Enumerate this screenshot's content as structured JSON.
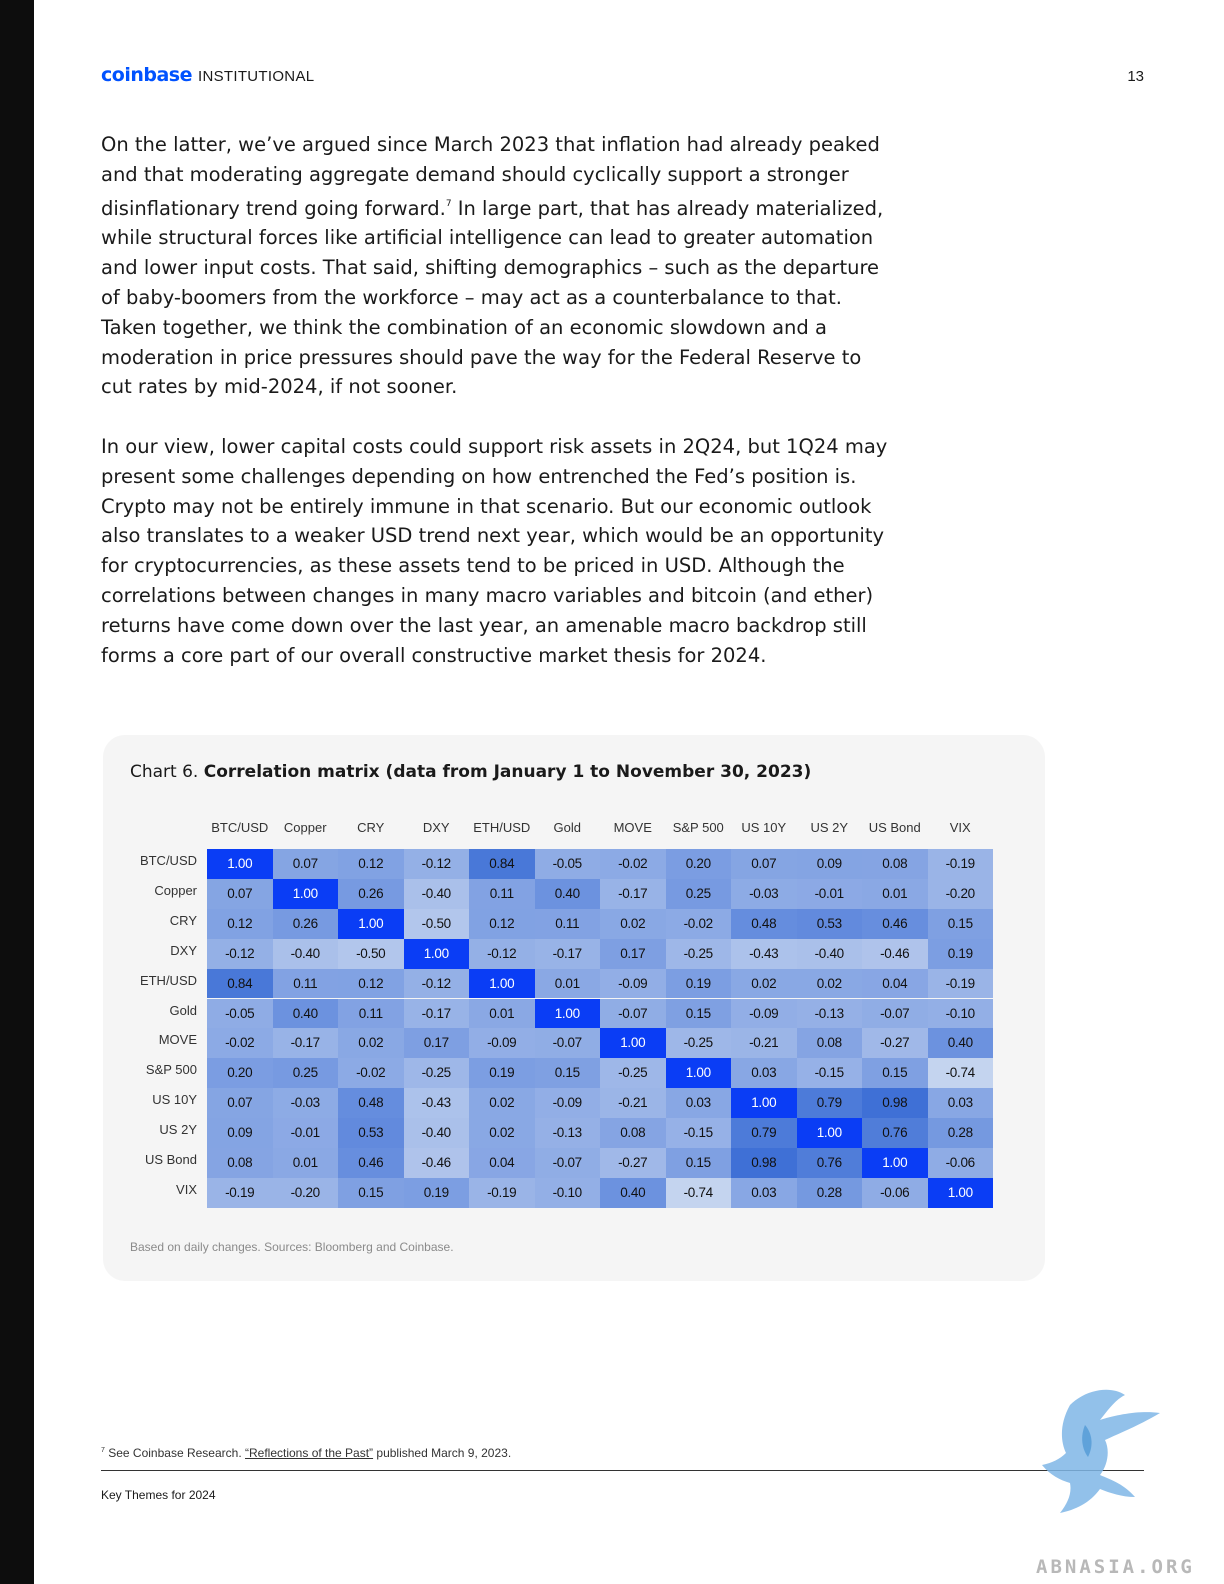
{
  "header": {
    "brand": "coinbase",
    "brand_sub": "INSTITUTIONAL",
    "page_number": "13"
  },
  "body": {
    "paragraph1_a": "On the latter, we’ve argued since March 2023 that inflation had already peaked and that moderating aggregate demand should cyclically support a stronger disinflationary trend going forward.",
    "paragraph1_sup": "7",
    "paragraph1_b": " In large part, that has already materialized, while structural forces like artificial intelligence can lead to greater automation and lower input costs. That said, shifting demographics – such as the departure of baby-boomers from the workforce – may act as a counterbalance to that. Taken together, we think the combination of an economic slowdown and a moderation in price pressures should pave the way for the Federal Reserve to cut rates by mid-2024, if not sooner.",
    "paragraph2": "In our view, lower capital costs could support risk assets in 2Q24, but 1Q24 may present some challenges depending on how entrenched the Fed’s position is. Crypto may not be entirely immune in that scenario. But our economic outlook also translates to a weaker USD trend next year, which would be an opportunity for cryptocurrencies, as these assets tend to be priced in USD. Although the correlations between changes in many macro variables and bitcoin (and ether) returns have come down over the last year, an amenable macro backdrop still forms a core part of our overall constructive market thesis for 2024."
  },
  "chart": {
    "label": "Chart 6.",
    "title": "Correlation matrix (data from January 1 to November 30, 2023)",
    "note": "Based on daily changes. Sources: Bloomberg and Coinbase."
  },
  "chart_data": {
    "type": "heatmap",
    "title": "Correlation matrix (data from January 1 to November 30, 2023)",
    "x_labels": [
      "BTC/USD",
      "Copper",
      "CRY",
      "DXY",
      "ETH/USD",
      "Gold",
      "MOVE",
      "S&P 500",
      "US 10Y",
      "US 2Y",
      "US Bond",
      "VIX"
    ],
    "y_labels": [
      "BTC/USD",
      "Copper",
      "CRY",
      "DXY",
      "ETH/USD",
      "Gold",
      "MOVE",
      "S&P 500",
      "US 10Y",
      "US 2Y",
      "US Bond",
      "VIX"
    ],
    "values": [
      [
        1.0,
        0.07,
        0.12,
        -0.12,
        0.84,
        -0.05,
        -0.02,
        0.2,
        0.07,
        0.09,
        0.08,
        -0.19
      ],
      [
        0.07,
        1.0,
        0.26,
        -0.4,
        0.11,
        0.4,
        -0.17,
        0.25,
        -0.03,
        -0.01,
        0.01,
        -0.2
      ],
      [
        0.12,
        0.26,
        1.0,
        -0.5,
        0.12,
        0.11,
        0.02,
        -0.02,
        0.48,
        0.53,
        0.46,
        0.15
      ],
      [
        -0.12,
        -0.4,
        -0.5,
        1.0,
        -0.12,
        -0.17,
        0.17,
        -0.25,
        -0.43,
        -0.4,
        -0.46,
        0.19
      ],
      [
        0.84,
        0.11,
        0.12,
        -0.12,
        1.0,
        0.01,
        -0.09,
        0.19,
        0.02,
        0.02,
        0.04,
        -0.19
      ],
      [
        -0.05,
        0.4,
        0.11,
        -0.17,
        0.01,
        1.0,
        -0.07,
        0.15,
        -0.09,
        -0.13,
        -0.07,
        -0.1
      ],
      [
        -0.02,
        -0.17,
        0.02,
        0.17,
        -0.09,
        -0.07,
        1.0,
        -0.25,
        -0.21,
        0.08,
        -0.27,
        0.4
      ],
      [
        0.2,
        0.25,
        -0.02,
        -0.25,
        0.19,
        0.15,
        -0.25,
        1.0,
        0.03,
        -0.15,
        0.15,
        -0.74
      ],
      [
        0.07,
        -0.03,
        0.48,
        -0.43,
        0.02,
        -0.09,
        -0.21,
        0.03,
        1.0,
        0.79,
        0.98,
        0.03
      ],
      [
        0.09,
        -0.01,
        0.53,
        -0.4,
        0.02,
        -0.13,
        0.08,
        -0.15,
        0.79,
        1.0,
        0.76,
        0.28
      ],
      [
        0.08,
        0.01,
        0.46,
        -0.46,
        0.04,
        -0.07,
        -0.27,
        0.15,
        0.98,
        0.76,
        1.0,
        -0.06
      ],
      [
        -0.19,
        -0.2,
        0.15,
        0.19,
        -0.19,
        -0.1,
        0.4,
        -0.74,
        0.03,
        0.28,
        -0.06,
        1.0
      ]
    ],
    "color_low": "#c9d7f0",
    "color_high": "#3d6fd6",
    "color_diagonal": "#0a3df5"
  },
  "footnote": {
    "number": "7",
    "prefix": " See Coinbase Research. ",
    "link": "“Reflections of the Past”",
    "suffix": " published March 9, 2023."
  },
  "footer": {
    "text": "Key Themes for 2024"
  },
  "watermark": {
    "text": "ABNASIA.ORG"
  }
}
